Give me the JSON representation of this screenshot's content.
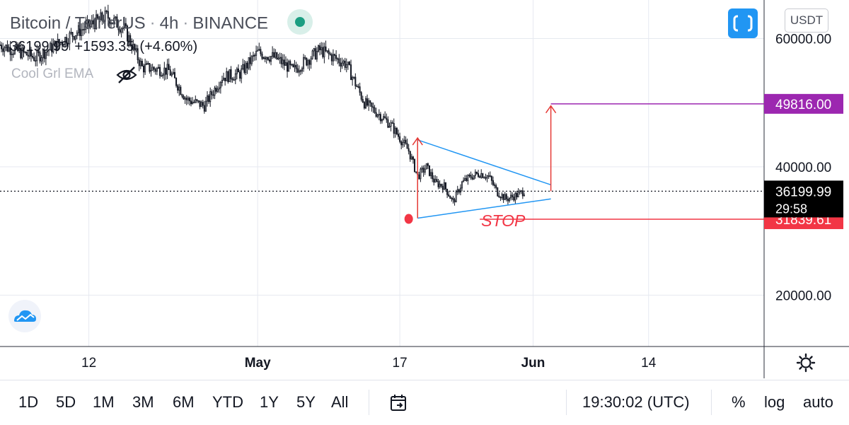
{
  "header": {
    "pair": "Bitcoin / TetherUS",
    "interval": "4h",
    "exchange": "BINANCE",
    "sep": "·"
  },
  "ohlc": {
    "last": "36199.99",
    "change": "+1593.35",
    "change_pct": "(+4.60%)"
  },
  "indicator": {
    "name": "Cool Grl EMA"
  },
  "currency_button": "USDT",
  "colors": {
    "accent": "#2196f3",
    "status_green": "#1b9e82",
    "target_purple": "#9c27b0",
    "stop_red": "#f23645",
    "pattern_blue": "#2196f3",
    "annotation_red": "#e53935",
    "candle": "#131722"
  },
  "icons": {
    "fullscreen": "fullscreen-icon",
    "visibility": "eye-off-icon",
    "logo": "tradingview-logo-icon",
    "settings": "gear-icon",
    "date_range": "calendar-icon"
  },
  "chart_data": {
    "type": "candlestick",
    "symbol": "BTCUSDT",
    "timeframe": "4h",
    "x_ticks": [
      {
        "label": "12",
        "date": "2021-04-12"
      },
      {
        "label": "May",
        "date": "2021-05-01"
      },
      {
        "label": "17",
        "date": "2021-05-17"
      },
      {
        "label": "Jun",
        "date": "2021-06-01"
      },
      {
        "label": "14",
        "date": "2021-06-14"
      }
    ],
    "x_range": [
      "2021-04-02",
      "2021-06-27"
    ],
    "y_ticks": [
      {
        "label": "60000.00",
        "value": 60000
      },
      {
        "label": "40000.00",
        "value": 40000
      },
      {
        "label": "20000.00",
        "value": 20000
      }
    ],
    "ylim": [
      12000,
      66000
    ],
    "grid": true,
    "price_path": [
      {
        "date": "2021-04-02",
        "close": 59000
      },
      {
        "date": "2021-04-06",
        "close": 57000
      },
      {
        "date": "2021-04-10",
        "close": 60500
      },
      {
        "date": "2021-04-14",
        "close": 63500
      },
      {
        "date": "2021-04-16",
        "close": 61500
      },
      {
        "date": "2021-04-18",
        "close": 55500
      },
      {
        "date": "2021-04-21",
        "close": 55000
      },
      {
        "date": "2021-04-23",
        "close": 50500
      },
      {
        "date": "2021-04-25",
        "close": 49500
      },
      {
        "date": "2021-04-27",
        "close": 54000
      },
      {
        "date": "2021-04-29",
        "close": 54500
      },
      {
        "date": "2021-05-01",
        "close": 57800
      },
      {
        "date": "2021-05-03",
        "close": 57000
      },
      {
        "date": "2021-05-05",
        "close": 55000
      },
      {
        "date": "2021-05-08",
        "close": 58200
      },
      {
        "date": "2021-05-11",
        "close": 56000
      },
      {
        "date": "2021-05-13",
        "close": 50000
      },
      {
        "date": "2021-05-15",
        "close": 47800
      },
      {
        "date": "2021-05-16",
        "close": 46500
      },
      {
        "date": "2021-05-18",
        "close": 42500
      },
      {
        "date": "2021-05-19",
        "close": 38500
      },
      {
        "date": "2021-05-20",
        "close": 40000
      },
      {
        "date": "2021-05-21",
        "close": 37500
      },
      {
        "date": "2021-05-22",
        "close": 37000
      },
      {
        "date": "2021-05-23",
        "close": 34500
      },
      {
        "date": "2021-05-24",
        "close": 37500
      },
      {
        "date": "2021-05-25",
        "close": 38500
      },
      {
        "date": "2021-05-26",
        "close": 39000
      },
      {
        "date": "2021-05-27",
        "close": 38500
      },
      {
        "date": "2021-05-28",
        "close": 36000
      },
      {
        "date": "2021-05-29",
        "close": 35000
      },
      {
        "date": "2021-05-30",
        "close": 35500
      },
      {
        "date": "2021-05-31",
        "close": 36200
      }
    ],
    "current_price": {
      "value": 36199.99,
      "label": "36199.99",
      "countdown": "29:58"
    },
    "target": {
      "value": 49816.0,
      "label": "49816.00",
      "from_date": "2021-06-03",
      "to_date": "2021-06-27"
    },
    "stop": {
      "value": 31839.61,
      "label": "31839.61",
      "text": "STOP",
      "from_date": "2021-05-26",
      "to_date": "2021-06-27"
    },
    "triangle": {
      "upper": [
        {
          "date": "2021-05-19",
          "value": 44200
        },
        {
          "date": "2021-06-03",
          "value": 37200
        }
      ],
      "lower": [
        {
          "date": "2021-05-19",
          "value": 32000
        },
        {
          "date": "2021-06-03",
          "value": 35000
        }
      ]
    },
    "entry_marker": {
      "date": "2021-05-18",
      "value": 32000
    },
    "flagpole": {
      "date": "2021-05-19",
      "from": 32000,
      "to": 44500
    },
    "breakout_arrow": {
      "date": "2021-06-03",
      "from": 36200,
      "to": 49500
    }
  },
  "toolbar": {
    "ranges": [
      "1D",
      "5D",
      "1M",
      "3M",
      "6M",
      "YTD",
      "1Y",
      "5Y",
      "All"
    ],
    "clock": "19:30:02 (UTC)",
    "percent": "%",
    "log": "log",
    "auto": "auto"
  }
}
